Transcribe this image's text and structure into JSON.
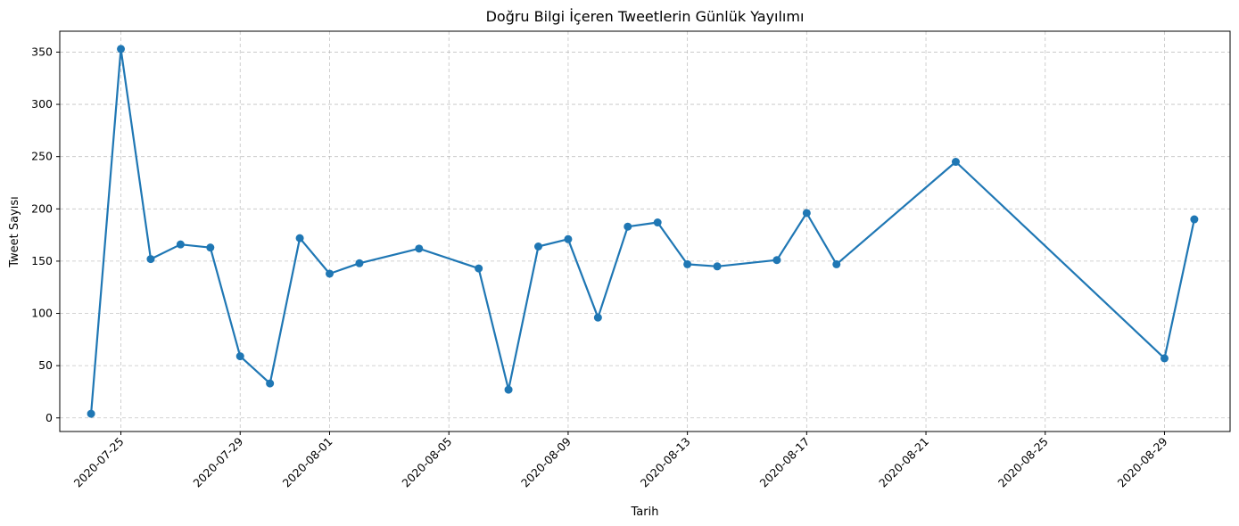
{
  "chart_data": {
    "type": "line",
    "title": "Doğru Bilgi İçeren Tweetlerin Günlük Yayılımı",
    "xlabel": "Tarih",
    "ylabel": "Tweet Sayısı",
    "ylim": [
      -13,
      370
    ],
    "xlim": [
      "2020-07-22T22:48",
      "2020-08-31T04:48"
    ],
    "grid": true,
    "color": "#1f77b4",
    "x_ticks": [
      "2020-07-25",
      "2020-07-29",
      "2020-08-01",
      "2020-08-05",
      "2020-08-09",
      "2020-08-13",
      "2020-08-17",
      "2020-08-21",
      "2020-08-25",
      "2020-08-29"
    ],
    "y_ticks": [
      0,
      50,
      100,
      150,
      200,
      250,
      300,
      350
    ],
    "series": [
      {
        "x": [
          "2020-07-24",
          "2020-07-25",
          "2020-07-26",
          "2020-07-27",
          "2020-07-28",
          "2020-07-29",
          "2020-07-30",
          "2020-07-31",
          "2020-08-01",
          "2020-08-02",
          "2020-08-04",
          "2020-08-06",
          "2020-08-07",
          "2020-08-08",
          "2020-08-09",
          "2020-08-10",
          "2020-08-11",
          "2020-08-12",
          "2020-08-13",
          "2020-08-14",
          "2020-08-16",
          "2020-08-17",
          "2020-08-18",
          "2020-08-22",
          "2020-08-29",
          "2020-08-30"
        ],
        "y": [
          4,
          353,
          152,
          166,
          163,
          59,
          33,
          172,
          138,
          148,
          162,
          143,
          27,
          164,
          171,
          96,
          183,
          187,
          147,
          145,
          151,
          196,
          147,
          245,
          57,
          190
        ]
      }
    ]
  }
}
